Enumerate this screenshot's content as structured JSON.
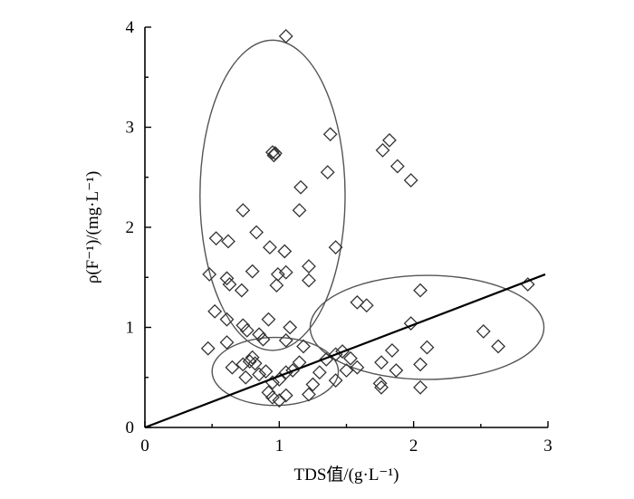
{
  "chart_data": {
    "type": "scatter",
    "xlabel": "TDS值/(g·L⁻¹)",
    "ylabel": "ρ(F⁻¹)/(mg·L⁻¹)",
    "xlim": [
      0,
      3
    ],
    "ylim": [
      0,
      4
    ],
    "xticks": [
      "0",
      "1",
      "2",
      "3"
    ],
    "yticks": [
      "0",
      "1",
      "2",
      "3",
      "4"
    ],
    "grid": false,
    "marker": "diamond",
    "points": [
      [
        1.05,
        3.91
      ],
      [
        0.95,
        2.75
      ],
      [
        0.97,
        2.74
      ],
      [
        0.96,
        2.72
      ],
      [
        1.38,
        2.93
      ],
      [
        1.36,
        2.55
      ],
      [
        1.16,
        2.4
      ],
      [
        1.15,
        2.17
      ],
      [
        0.73,
        2.17
      ],
      [
        0.53,
        1.89
      ],
      [
        0.62,
        1.86
      ],
      [
        0.83,
        1.95
      ],
      [
        0.93,
        1.8
      ],
      [
        1.04,
        1.76
      ],
      [
        1.42,
        1.8
      ],
      [
        0.48,
        1.53
      ],
      [
        0.61,
        1.49
      ],
      [
        0.63,
        1.43
      ],
      [
        0.72,
        1.37
      ],
      [
        0.8,
        1.56
      ],
      [
        0.98,
        1.42
      ],
      [
        1.05,
        1.55
      ],
      [
        0.99,
        1.53
      ],
      [
        1.22,
        1.61
      ],
      [
        1.22,
        1.47
      ],
      [
        1.77,
        2.77
      ],
      [
        1.82,
        2.87
      ],
      [
        1.88,
        2.61
      ],
      [
        1.98,
        2.47
      ],
      [
        1.58,
        1.25
      ],
      [
        1.65,
        1.22
      ],
      [
        2.05,
        1.37
      ],
      [
        1.98,
        1.04
      ],
      [
        2.52,
        0.96
      ],
      [
        2.63,
        0.81
      ],
      [
        2.85,
        1.43
      ],
      [
        2.1,
        0.8
      ],
      [
        1.84,
        0.77
      ],
      [
        1.76,
        0.65
      ],
      [
        2.05,
        0.63
      ],
      [
        1.87,
        0.57
      ],
      [
        1.75,
        0.44
      ],
      [
        1.76,
        0.4
      ],
      [
        2.05,
        0.4
      ],
      [
        0.52,
        1.16
      ],
      [
        0.61,
        1.08
      ],
      [
        0.73,
        1.02
      ],
      [
        0.92,
        1.08
      ],
      [
        1.08,
        1.0
      ],
      [
        0.47,
        0.79
      ],
      [
        0.61,
        0.85
      ],
      [
        0.76,
        0.97
      ],
      [
        0.8,
        0.7
      ],
      [
        0.85,
        0.93
      ],
      [
        0.88,
        0.88
      ],
      [
        1.05,
        0.87
      ],
      [
        1.18,
        0.81
      ],
      [
        0.65,
        0.6
      ],
      [
        0.73,
        0.63
      ],
      [
        0.78,
        0.66
      ],
      [
        0.82,
        0.64
      ],
      [
        0.9,
        0.56
      ],
      [
        0.95,
        0.45
      ],
      [
        1.0,
        0.48
      ],
      [
        1.05,
        0.55
      ],
      [
        1.1,
        0.57
      ],
      [
        1.15,
        0.65
      ],
      [
        0.85,
        0.53
      ],
      [
        0.75,
        0.5
      ],
      [
        0.92,
        0.35
      ],
      [
        0.95,
        0.3
      ],
      [
        1.0,
        0.27
      ],
      [
        1.05,
        0.32
      ],
      [
        1.22,
        0.33
      ],
      [
        1.25,
        0.43
      ],
      [
        1.3,
        0.55
      ],
      [
        1.35,
        0.68
      ],
      [
        1.42,
        0.73
      ],
      [
        1.47,
        0.76
      ],
      [
        1.53,
        0.69
      ],
      [
        1.58,
        0.6
      ],
      [
        1.5,
        0.57
      ],
      [
        1.42,
        0.47
      ]
    ],
    "fit_line": {
      "x": [
        0,
        2.98
      ],
      "y": [
        0,
        1.53
      ]
    },
    "ellipses": [
      {
        "cx": 0.95,
        "cy": 2.32,
        "rx": 0.54,
        "ry": 1.55,
        "angle": 0
      },
      {
        "cx": 0.97,
        "cy": 0.56,
        "rx": 0.47,
        "ry": 0.34,
        "angle": 0
      },
      {
        "cx": 2.1,
        "cy": 1.0,
        "rx": 0.87,
        "ry": 0.52,
        "angle": 0
      }
    ]
  }
}
